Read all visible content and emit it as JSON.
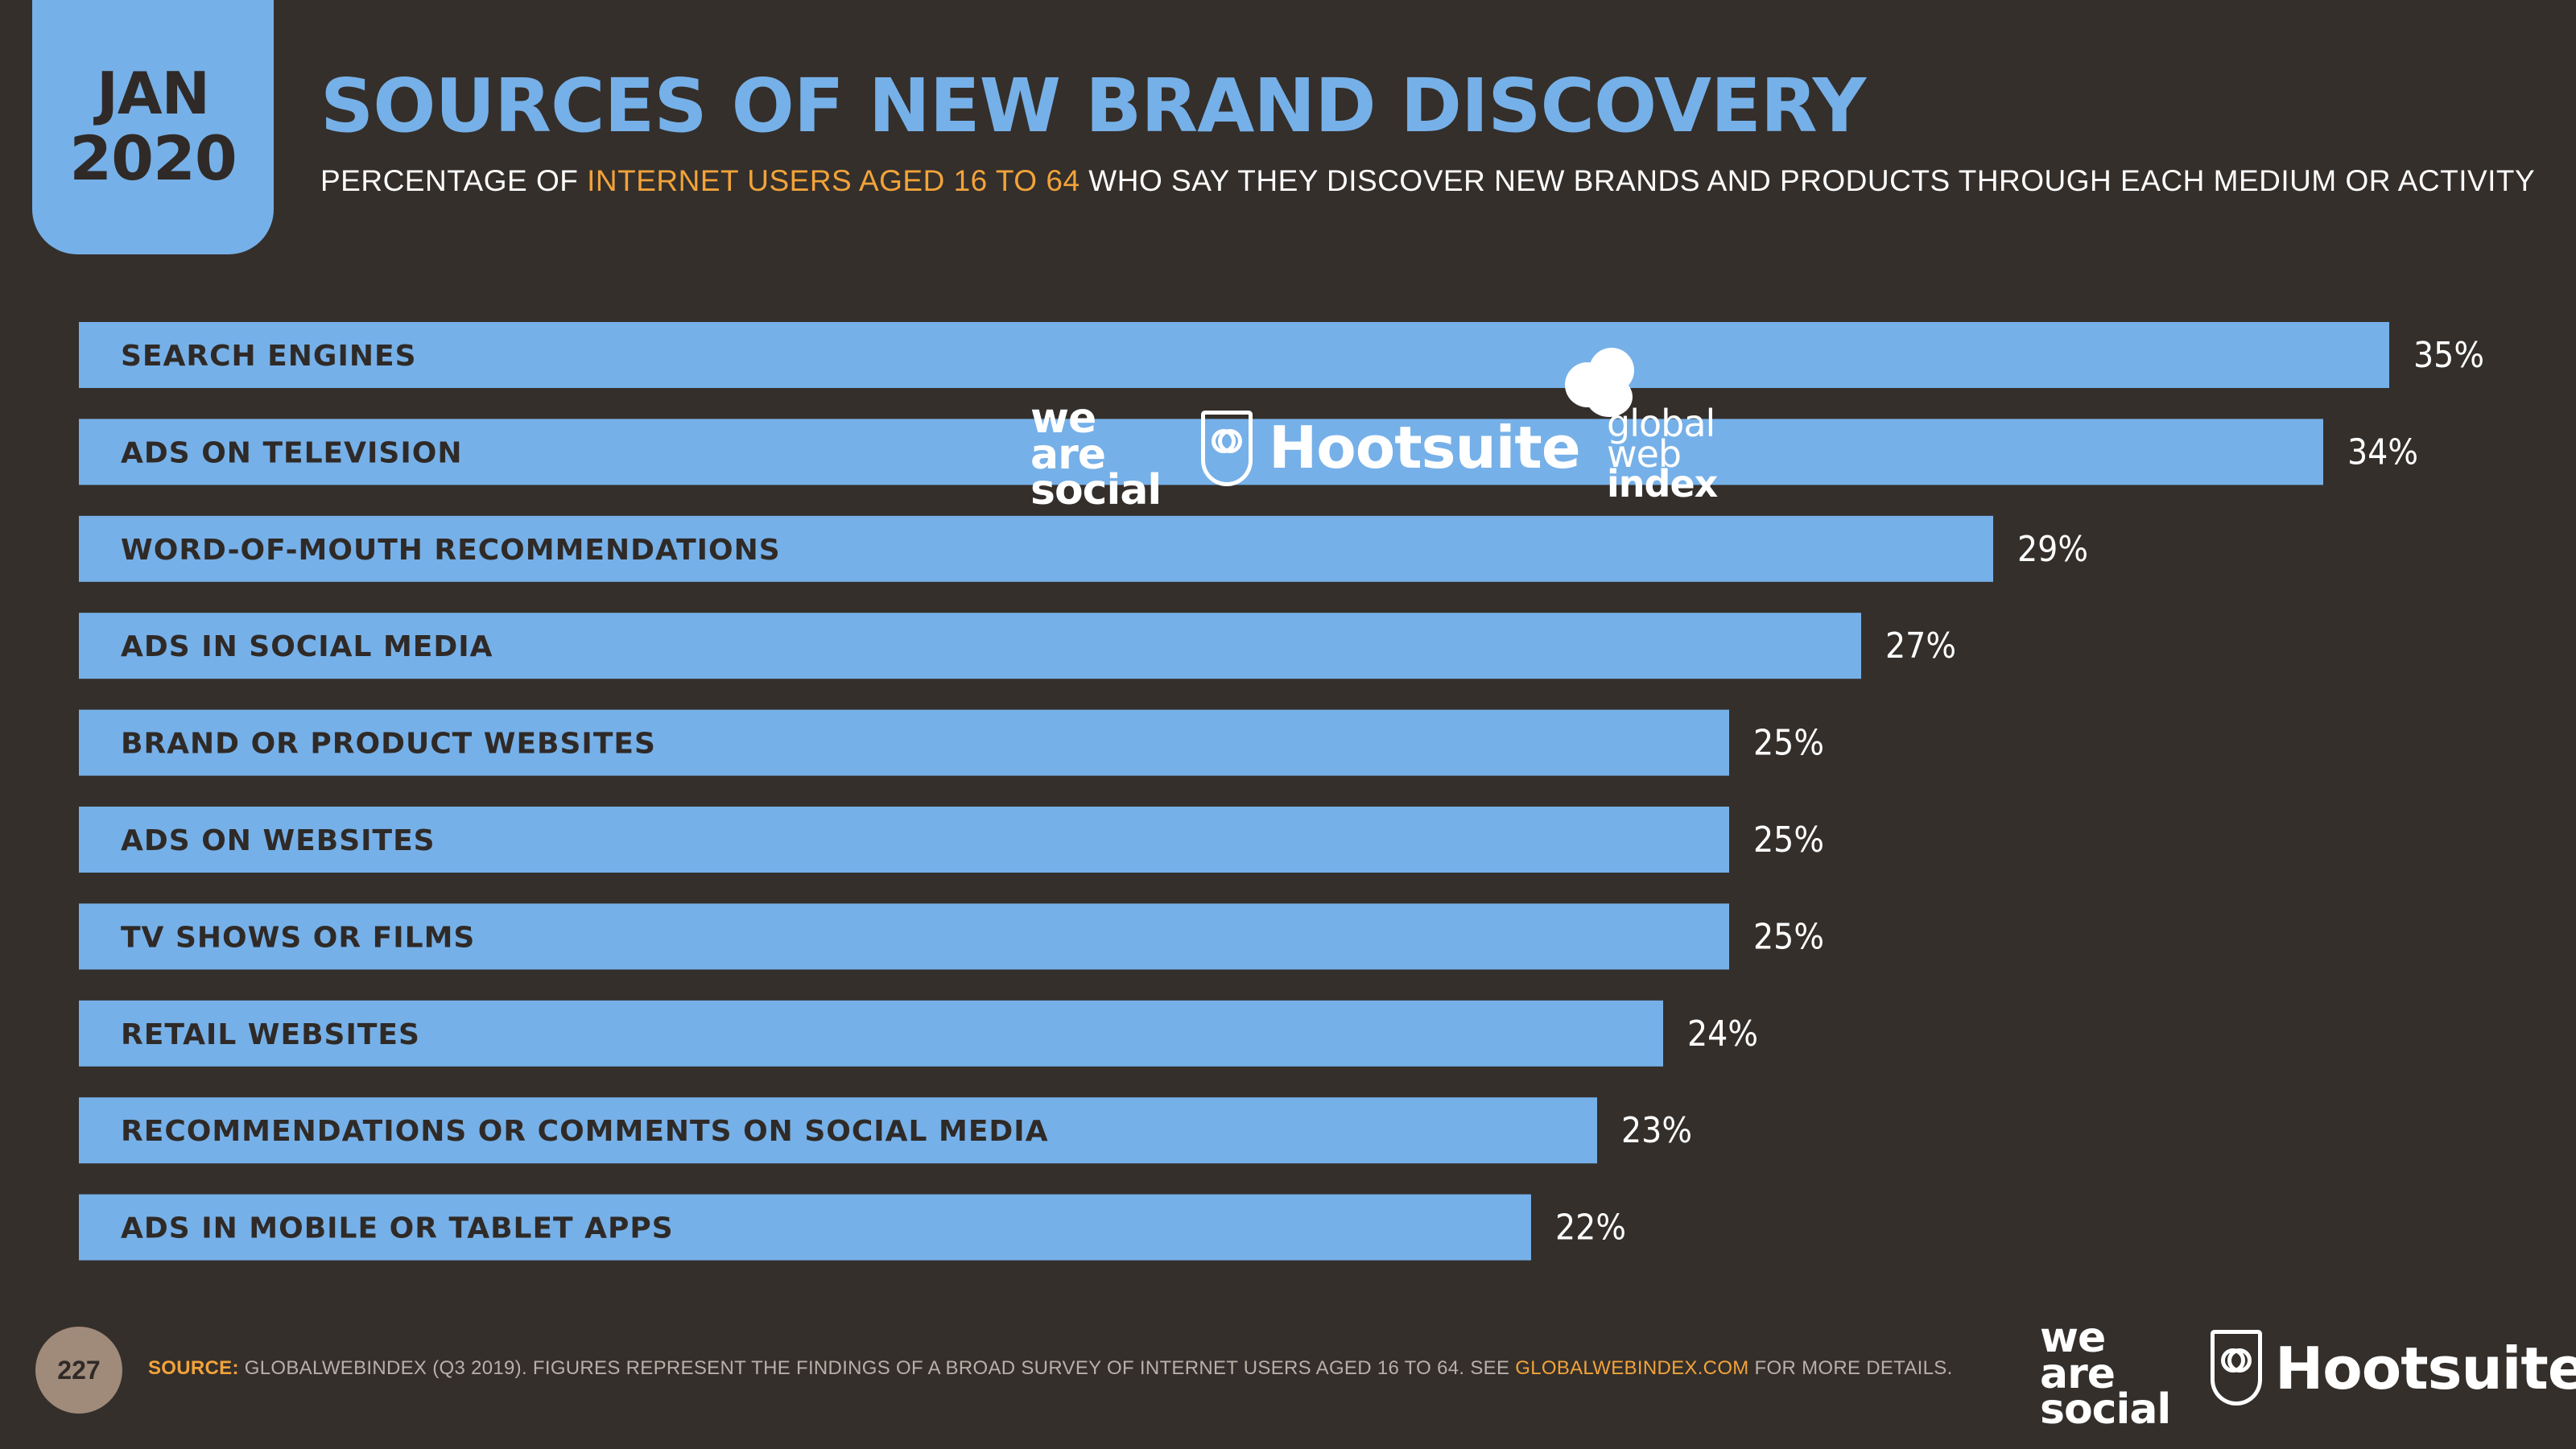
{
  "header": {
    "month": "JAN",
    "year": "2020",
    "title": "SOURCES OF NEW BRAND DISCOVERY",
    "subtitle_pre": "PERCENTAGE OF ",
    "subtitle_highlight": "INTERNET USERS AGED 16 TO 64",
    "subtitle_post": " WHO SAY THEY DISCOVER NEW BRANDS AND PRODUCTS THROUGH EACH MEDIUM OR ACTIVITY"
  },
  "colors": {
    "background": "#342f2b",
    "bar": "#76b0e8",
    "accent": "#f2a33a",
    "text": "#ffffff"
  },
  "chart_data": {
    "type": "bar",
    "orientation": "horizontal",
    "categories": [
      "SEARCH ENGINES",
      "ADS ON TELEVISION",
      "WORD-OF-MOUTH RECOMMENDATIONS",
      "ADS IN SOCIAL MEDIA",
      "BRAND OR PRODUCT WEBSITES",
      "ADS ON WEBSITES",
      "TV SHOWS OR FILMS",
      "RETAIL WEBSITES",
      "RECOMMENDATIONS OR COMMENTS ON SOCIAL MEDIA",
      "ADS IN MOBILE OR TABLET APPS"
    ],
    "values": [
      35,
      34,
      29,
      27,
      25,
      25,
      25,
      24,
      23,
      22
    ],
    "value_labels": [
      "35%",
      "34%",
      "29%",
      "27%",
      "25%",
      "25%",
      "25%",
      "24%",
      "23%",
      "22%"
    ],
    "title": "SOURCES OF NEW BRAND DISCOVERY",
    "xlabel": "",
    "ylabel": "",
    "grid": false
  },
  "watermark": {
    "was_lines": [
      "we",
      "are",
      "social"
    ],
    "hootsuite": "Hootsuite",
    "gwi_lines": [
      "global",
      "web",
      "index"
    ]
  },
  "footer": {
    "page_number": "227",
    "source_lead": "SOURCE:",
    "source_text": " GLOBALWEBINDEX (Q3 2019). FIGURES REPRESENT THE FINDINGS OF A BROAD SURVEY OF INTERNET USERS AGED 16 TO 64. SEE ",
    "source_url": "GLOBALWEBINDEX.COM",
    "source_tail": " FOR MORE DETAILS.",
    "was_lines": [
      "we",
      "are",
      "social"
    ],
    "hootsuite": "Hootsuite"
  }
}
